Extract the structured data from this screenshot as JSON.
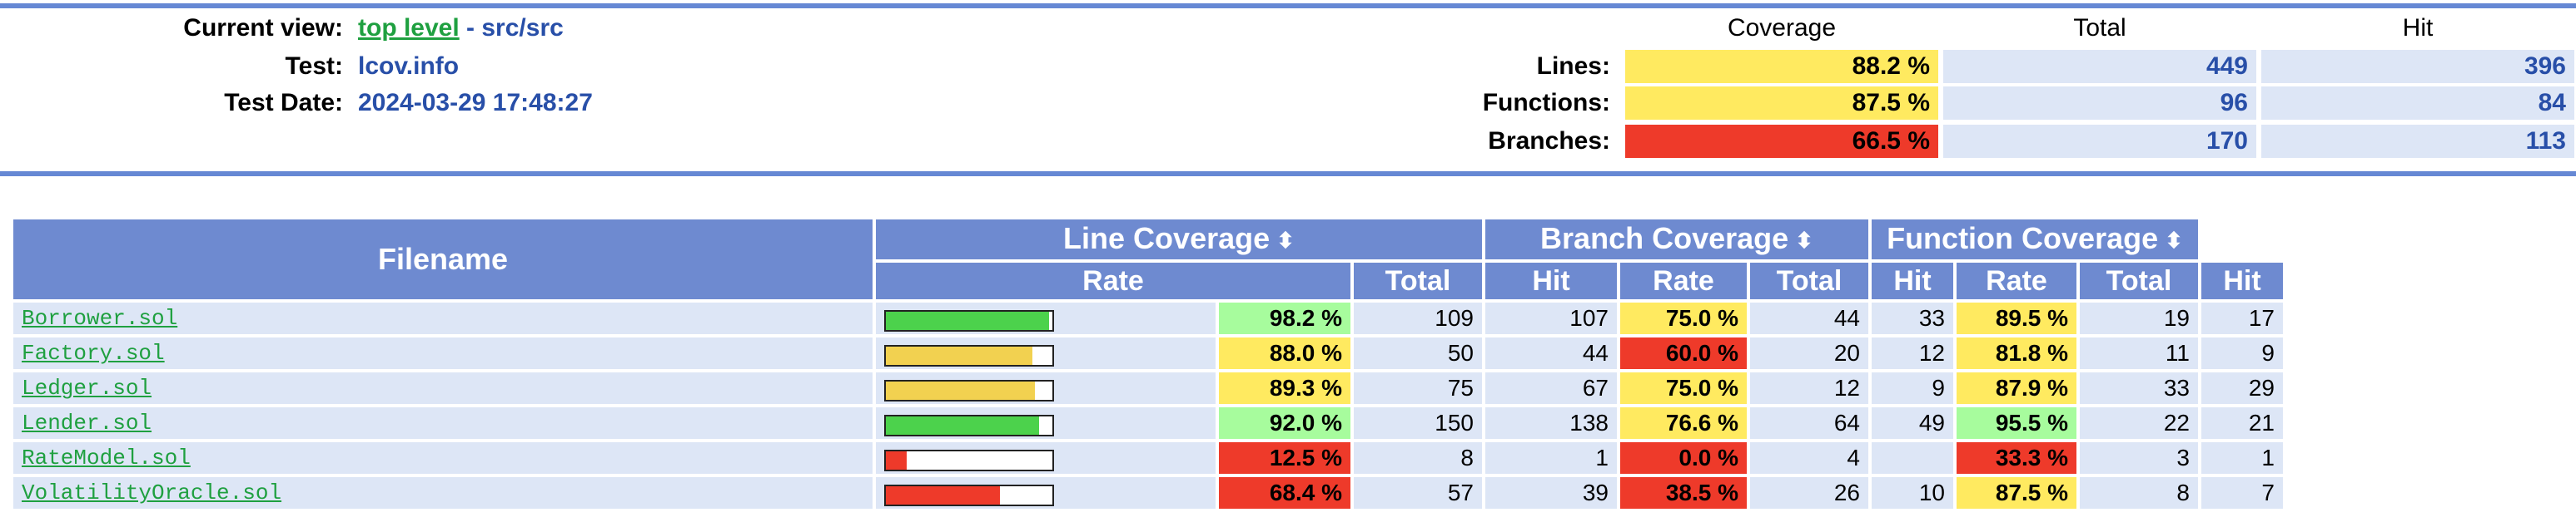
{
  "header": {
    "current_view_label": "Current view:",
    "current_view_link": "top level",
    "current_view_sep": " - ",
    "current_view_path": "src/src",
    "test_label": "Test:",
    "test_value": "lcov.info",
    "date_label": "Test Date:",
    "date_value": "2024-03-29 17:48:27"
  },
  "summary": {
    "columns": [
      "Coverage",
      "Total",
      "Hit"
    ],
    "rows": [
      {
        "label": "Lines:",
        "pct": "88.2 %",
        "total": "449",
        "hit": "396",
        "level": "medium"
      },
      {
        "label": "Functions:",
        "pct": "87.5 %",
        "total": "96",
        "hit": "84",
        "level": "medium"
      },
      {
        "label": "Branches:",
        "pct": "66.5 %",
        "total": "170",
        "hit": "113",
        "level": "low"
      }
    ]
  },
  "table": {
    "filename_header": "Filename",
    "groups": [
      "Line Coverage",
      "Branch Coverage",
      "Function Coverage"
    ],
    "sub_headers": {
      "rate": "Rate",
      "total": "Total",
      "hit": "Hit"
    },
    "sort_icon": "sort-icon",
    "files": [
      {
        "name": "Borrower.sol",
        "line_fraction": 0.982,
        "line_rate": "98.2 %",
        "line_level": "high",
        "line_total": "109",
        "line_hit": "107",
        "branch_rate": "75.0 %",
        "branch_level": "medium",
        "branch_total": "44",
        "branch_hit": "33",
        "func_rate": "89.5 %",
        "func_level": "medium",
        "func_total": "19",
        "func_hit": "17"
      },
      {
        "name": "Factory.sol",
        "line_fraction": 0.88,
        "line_rate": "88.0 %",
        "line_level": "medium",
        "line_total": "50",
        "line_hit": "44",
        "branch_rate": "60.0 %",
        "branch_level": "low",
        "branch_total": "20",
        "branch_hit": "12",
        "func_rate": "81.8 %",
        "func_level": "medium",
        "func_total": "11",
        "func_hit": "9"
      },
      {
        "name": "Ledger.sol",
        "line_fraction": 0.893,
        "line_rate": "89.3 %",
        "line_level": "medium",
        "line_total": "75",
        "line_hit": "67",
        "branch_rate": "75.0 %",
        "branch_level": "medium",
        "branch_total": "12",
        "branch_hit": "9",
        "func_rate": "87.9 %",
        "func_level": "medium",
        "func_total": "33",
        "func_hit": "29"
      },
      {
        "name": "Lender.sol",
        "line_fraction": 0.92,
        "line_rate": "92.0 %",
        "line_level": "high",
        "line_total": "150",
        "line_hit": "138",
        "branch_rate": "76.6 %",
        "branch_level": "medium",
        "branch_total": "64",
        "branch_hit": "49",
        "func_rate": "95.5 %",
        "func_level": "high",
        "func_total": "22",
        "func_hit": "21"
      },
      {
        "name": "RateModel.sol",
        "line_fraction": 0.125,
        "line_rate": "12.5 %",
        "line_level": "low",
        "line_total": "8",
        "line_hit": "1",
        "branch_rate": "0.0 %",
        "branch_level": "low",
        "branch_total": "4",
        "branch_hit": "",
        "func_rate": "33.3 %",
        "func_level": "low",
        "func_total": "3",
        "func_hit": "1"
      },
      {
        "name": "VolatilityOracle.sol",
        "line_fraction": 0.684,
        "line_rate": "68.4 %",
        "line_level": "low",
        "line_total": "57",
        "line_hit": "39",
        "branch_rate": "38.5 %",
        "branch_level": "low",
        "branch_total": "26",
        "branch_hit": "10",
        "func_rate": "87.5 %",
        "func_level": "medium",
        "func_total": "8",
        "func_hit": "7"
      }
    ]
  },
  "colors": {
    "rule": "#6688d4",
    "header_bg": "#6e8ad0",
    "row_bg": "#dde6f6",
    "high": "#a7fc9d",
    "medium": "#ffea60",
    "low": "#ee3a2a",
    "bar_high": "#4cd24c",
    "bar_medium": "#f2d150",
    "bar_low": "#ee3a2a"
  }
}
